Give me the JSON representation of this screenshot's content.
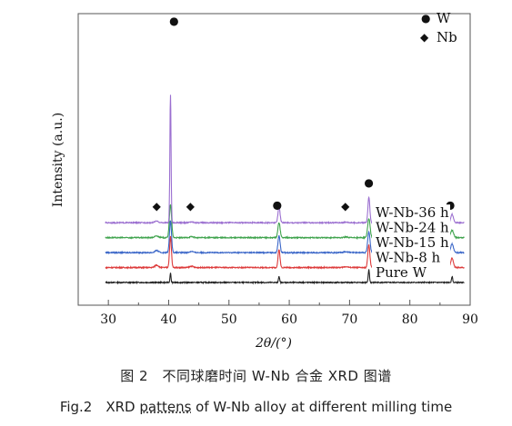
{
  "chart_data": {
    "type": "line",
    "title": "",
    "xlabel": "2θ/(°)",
    "ylabel": "Intensity (a.u.)",
    "xlim": [
      25,
      90
    ],
    "x_ticks": [
      30,
      40,
      50,
      60,
      70,
      80,
      90
    ],
    "grid": false,
    "legend": {
      "placement": "top-right",
      "entries": [
        {
          "symbol": "●",
          "label": "W"
        },
        {
          "symbol": "◆",
          "label": "Nb"
        }
      ]
    },
    "series": [
      {
        "name": "Pure W",
        "color": "#222222",
        "baseline": 0,
        "peaks": [
          {
            "x": 40.3,
            "h": 0.44,
            "w": 0.12
          },
          {
            "x": 58.3,
            "h": 0.3,
            "w": 0.13
          },
          {
            "x": 73.2,
            "h": 0.6,
            "w": 0.14
          },
          {
            "x": 87.0,
            "h": 0.28,
            "w": 0.14
          }
        ]
      },
      {
        "name": "W-Nb-8 h",
        "color": "#dd3b3b",
        "baseline": 0.7,
        "peaks": [
          {
            "x": 38.0,
            "h": 0.12,
            "w": 0.4
          },
          {
            "x": 40.3,
            "h": 1.45,
            "w": 0.22
          },
          {
            "x": 43.8,
            "h": 0.06,
            "w": 0.4
          },
          {
            "x": 58.3,
            "h": 0.85,
            "w": 0.22
          },
          {
            "x": 69.4,
            "h": 0.04,
            "w": 0.5
          },
          {
            "x": 73.2,
            "h": 1.05,
            "w": 0.24
          },
          {
            "x": 87.0,
            "h": 0.45,
            "w": 0.3
          }
        ]
      },
      {
        "name": "W-Nb-15 h",
        "color": "#3a66c8",
        "baseline": 1.4,
        "peaks": [
          {
            "x": 38.0,
            "h": 0.1,
            "w": 0.4
          },
          {
            "x": 40.3,
            "h": 1.5,
            "w": 0.24
          },
          {
            "x": 43.8,
            "h": 0.06,
            "w": 0.4
          },
          {
            "x": 58.3,
            "h": 0.8,
            "w": 0.24
          },
          {
            "x": 69.4,
            "h": 0.04,
            "w": 0.5
          },
          {
            "x": 73.2,
            "h": 1.0,
            "w": 0.26
          },
          {
            "x": 87.0,
            "h": 0.4,
            "w": 0.32
          }
        ]
      },
      {
        "name": "W-Nb-24 h",
        "color": "#3fa34d",
        "baseline": 2.1,
        "peaks": [
          {
            "x": 38.0,
            "h": 0.08,
            "w": 0.45
          },
          {
            "x": 40.3,
            "h": 1.55,
            "w": 0.26
          },
          {
            "x": 43.8,
            "h": 0.05,
            "w": 0.45
          },
          {
            "x": 58.3,
            "h": 0.7,
            "w": 0.26
          },
          {
            "x": 69.4,
            "h": 0.03,
            "w": 0.5
          },
          {
            "x": 73.2,
            "h": 0.9,
            "w": 0.28
          },
          {
            "x": 87.0,
            "h": 0.35,
            "w": 0.34
          }
        ]
      },
      {
        "name": "W-Nb-36 h",
        "color": "#9b6fd0",
        "baseline": 2.8,
        "peaks": [
          {
            "x": 38.0,
            "h": 0.07,
            "w": 0.45
          },
          {
            "x": 40.3,
            "h": 6.0,
            "w": 0.14
          },
          {
            "x": 43.8,
            "h": 0.04,
            "w": 0.45
          },
          {
            "x": 58.3,
            "h": 0.75,
            "w": 0.24
          },
          {
            "x": 69.4,
            "h": 0.03,
            "w": 0.5
          },
          {
            "x": 73.2,
            "h": 1.2,
            "w": 0.22
          },
          {
            "x": 87.0,
            "h": 0.4,
            "w": 0.3
          }
        ]
      }
    ],
    "markers": [
      {
        "symbol": "●",
        "phase": "W",
        "x": 40.9
      },
      {
        "symbol": "◆",
        "phase": "Nb",
        "x": 38.0
      },
      {
        "symbol": "◆",
        "phase": "Nb",
        "x": 43.6
      },
      {
        "symbol": "●",
        "phase": "W",
        "x": 58.0
      },
      {
        "symbol": "◆",
        "phase": "Nb",
        "x": 69.3
      },
      {
        "symbol": "●",
        "phase": "W",
        "x": 73.2
      },
      {
        "symbol": "●",
        "phase": "W",
        "x": 86.7
      }
    ]
  },
  "caption": {
    "cn": "图 2　不同球磨时间 W-Nb 合金 XRD 图谱",
    "en_prefix": "Fig.2　XRD ",
    "en_underlined": "pattens",
    "en_suffix": " of W-Nb alloy at different milling time"
  }
}
